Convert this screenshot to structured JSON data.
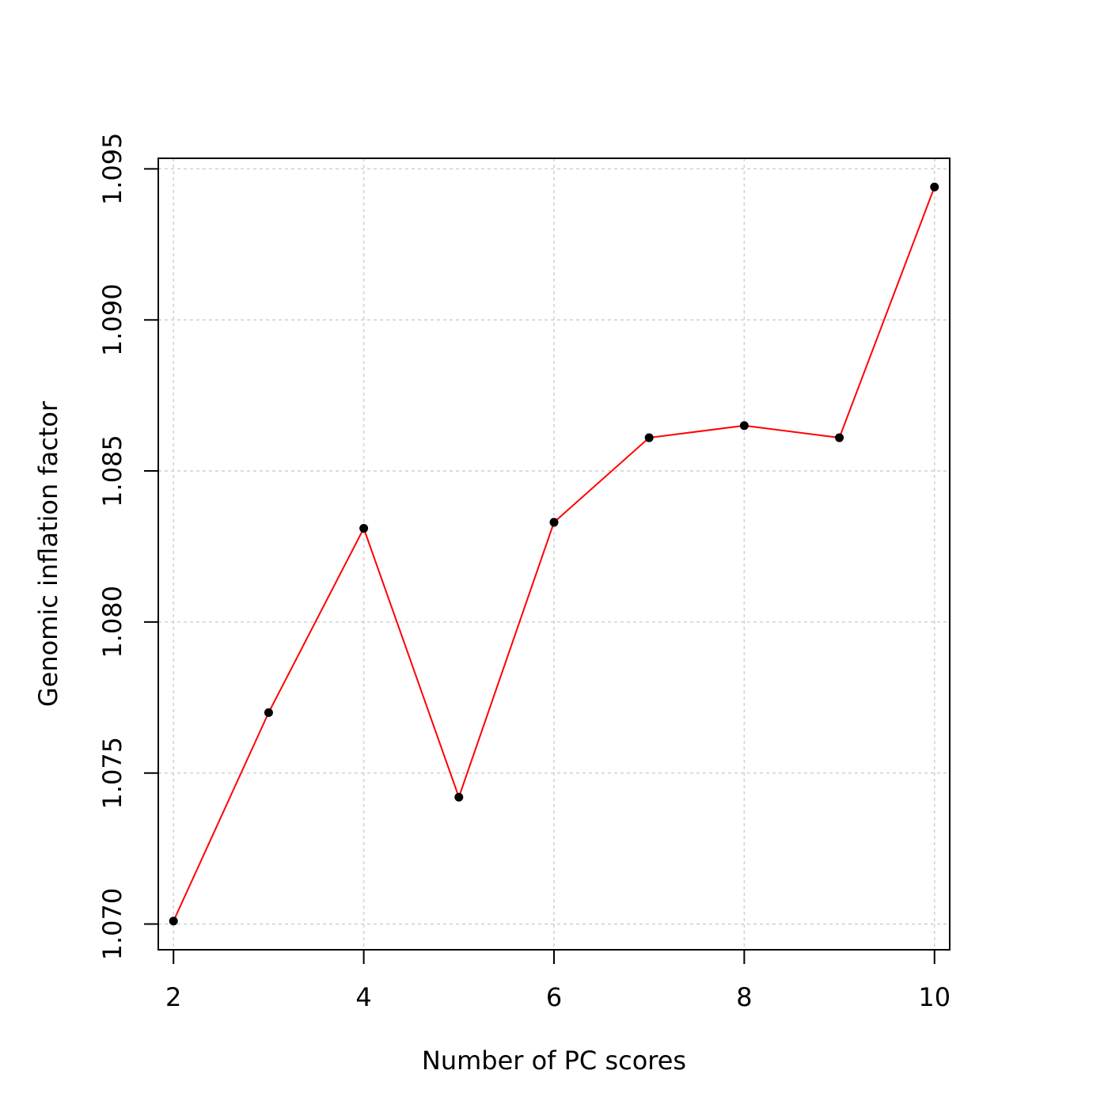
{
  "chart_data": {
    "type": "line",
    "title": "",
    "xlabel": "Number of PC scores",
    "ylabel": "Genomic inflation factor",
    "x": [
      2,
      3,
      4,
      5,
      6,
      7,
      8,
      9,
      10
    ],
    "series": [
      {
        "values": [
          1.0701,
          1.077,
          1.0831,
          1.0742,
          1.0833,
          1.0861,
          1.0865,
          1.0861,
          1.0944
        ]
      }
    ],
    "xlim": [
      1.84,
      10.16
    ],
    "ylim": [
      1.06915,
      1.09535
    ],
    "x_ticks": [
      2,
      4,
      6,
      8,
      10
    ],
    "x_tick_labels": [
      "2",
      "4",
      "6",
      "8",
      "10"
    ],
    "y_ticks": [
      1.07,
      1.075,
      1.08,
      1.085,
      1.09,
      1.095
    ],
    "y_tick_labels": [
      "1.070",
      "1.075",
      "1.080",
      "1.085",
      "1.090",
      "1.095"
    ],
    "grid": true,
    "grid_x": [
      2,
      4,
      6,
      8,
      10
    ],
    "grid_y": [
      1.07,
      1.075,
      1.08,
      1.085,
      1.09,
      1.095
    ],
    "legend": false,
    "line_color": "#ff0000",
    "point_color": "#000000",
    "grid_color": "#d3d3d3"
  }
}
